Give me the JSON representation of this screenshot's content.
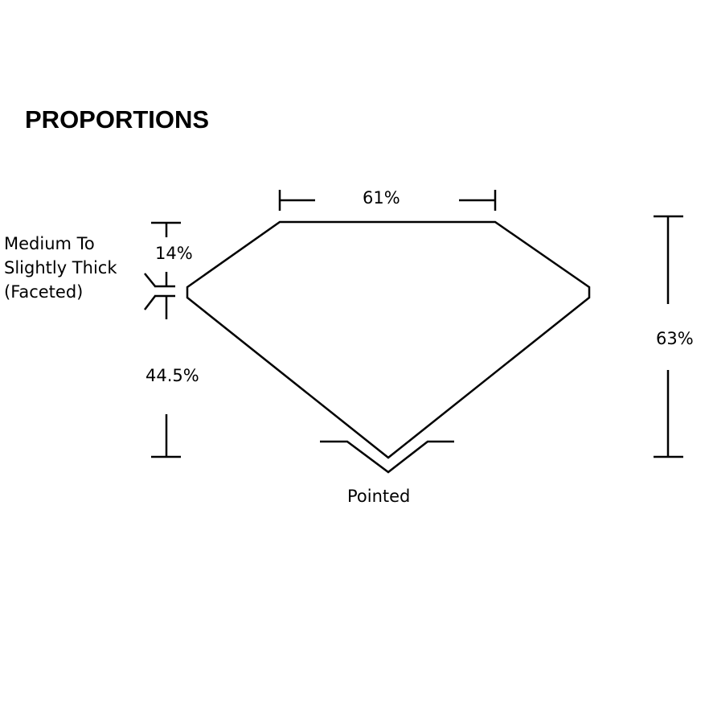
{
  "title": "PROPORTIONS",
  "labels": {
    "table": "61%",
    "crown": "14%",
    "girdle": "Medium To Slightly Thick (Faceted)",
    "girdle_lines": [
      "Medium To",
      "Slightly Thick",
      "(Faceted)"
    ],
    "pavilion": "44.5%",
    "depth": "63%",
    "culet": "Pointed"
  },
  "colors": {
    "line": "#000000",
    "background": "#ffffff"
  }
}
